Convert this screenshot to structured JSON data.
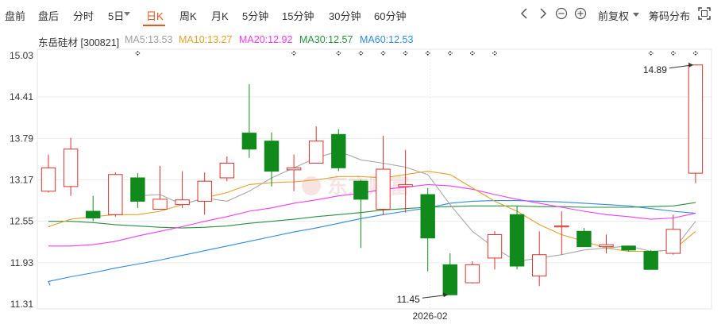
{
  "toolbar": {
    "tabs": [
      "盘前",
      "盘后",
      "分时",
      "5日",
      "日K",
      "周K",
      "月K",
      "5分钟",
      "15分钟",
      "30分钟",
      "60分钟"
    ],
    "active_tab": "日K",
    "adjust_label": "前复权",
    "chip_label": "筹码分布"
  },
  "legend": {
    "stock": "东岳硅材 [300821]",
    "ma5": "MA5:13.53",
    "ma10": "MA10:13.27",
    "ma20": "MA20:12.92",
    "ma30": "MA30:12.57",
    "ma60": "MA60:12.53"
  },
  "colors": {
    "up": "#d8332d",
    "down": "#118a1c",
    "ma5": "#a8a8a8",
    "ma10": "#e2a12b",
    "ma20": "#f43af4",
    "ma30": "#2a8f3f",
    "ma60": "#2f8ae0",
    "accent": "#e8541e"
  },
  "chart_data": {
    "type": "candlestick",
    "y_ticks": [
      "15.03",
      "14.41",
      "13.79",
      "13.17",
      "12.55",
      "11.93",
      "11.31"
    ],
    "ylim": [
      11.31,
      15.03
    ],
    "x_tick_label": "2026-02",
    "annotations": {
      "high": "14.89",
      "low": "11.45"
    },
    "candles": [
      {
        "open": 13.0,
        "close": 13.35,
        "high": 13.55,
        "low": 12.98
      },
      {
        "open": 13.07,
        "close": 13.63,
        "high": 13.8,
        "low": 12.93
      },
      {
        "open": 12.7,
        "close": 12.6,
        "high": 12.93,
        "low": 12.55
      },
      {
        "open": 12.65,
        "close": 13.25,
        "high": 13.28,
        "low": 12.62
      },
      {
        "open": 13.2,
        "close": 12.85,
        "high": 13.27,
        "low": 12.75
      },
      {
        "open": 12.73,
        "close": 12.88,
        "high": 13.38,
        "low": 12.73
      },
      {
        "open": 12.8,
        "close": 12.87,
        "high": 13.3,
        "low": 12.75
      },
      {
        "open": 12.85,
        "close": 13.15,
        "high": 13.28,
        "low": 12.65
      },
      {
        "open": 13.2,
        "close": 13.42,
        "high": 13.52,
        "low": 13.15
      },
      {
        "open": 13.87,
        "close": 13.63,
        "high": 14.6,
        "low": 13.5
      },
      {
        "open": 13.75,
        "close": 13.3,
        "high": 13.88,
        "low": 13.07
      },
      {
        "open": 13.32,
        "close": 13.35,
        "high": 13.55,
        "low": 13.0
      },
      {
        "open": 13.42,
        "close": 13.75,
        "high": 13.97,
        "low": 13.43
      },
      {
        "open": 13.85,
        "close": 13.35,
        "high": 13.93,
        "low": 13.3
      },
      {
        "open": 13.15,
        "close": 12.88,
        "high": 13.17,
        "low": 12.15
      },
      {
        "open": 12.73,
        "close": 13.33,
        "high": 13.83,
        "low": 12.65
      },
      {
        "open": 13.07,
        "close": 13.1,
        "high": 13.62,
        "low": 12.68
      },
      {
        "open": 12.95,
        "close": 12.3,
        "high": 13.05,
        "low": 11.8
      },
      {
        "open": 11.9,
        "close": 11.45,
        "high": 12.07,
        "low": 11.45
      },
      {
        "open": 11.63,
        "close": 11.9,
        "high": 11.95,
        "low": 11.62
      },
      {
        "open": 12.0,
        "close": 12.35,
        "high": 12.4,
        "low": 11.83
      },
      {
        "open": 12.65,
        "close": 11.88,
        "high": 12.78,
        "low": 11.83
      },
      {
        "open": 11.73,
        "close": 12.05,
        "high": 12.4,
        "low": 11.58
      },
      {
        "open": 12.47,
        "close": 12.48,
        "high": 12.7,
        "low": 12.05
      },
      {
        "open": 12.4,
        "close": 12.17,
        "high": 12.45,
        "low": 12.17
      },
      {
        "open": 12.17,
        "close": 12.2,
        "high": 12.35,
        "low": 12.07
      },
      {
        "open": 12.18,
        "close": 12.12,
        "high": 12.18,
        "low": 12.1
      },
      {
        "open": 12.1,
        "close": 11.83,
        "high": 12.12,
        "low": 11.83
      },
      {
        "open": 12.07,
        "close": 12.43,
        "high": 12.65,
        "low": 12.05
      },
      {
        "open": 13.27,
        "close": 14.89,
        "high": 14.89,
        "low": 13.12
      }
    ],
    "ma5": [
      null,
      null,
      null,
      null,
      12.93,
      12.95,
      12.8,
      12.9,
      12.85,
      13.0,
      13.2,
      13.35,
      13.5,
      13.6,
      13.47,
      13.42,
      13.36,
      13.25,
      12.8,
      12.4,
      12.15,
      11.95,
      12.0,
      12.05,
      12.12,
      12.15,
      12.18,
      12.1,
      12.12,
      12.55
    ],
    "ma10": [
      12.47,
      12.58,
      12.62,
      12.65,
      12.65,
      12.7,
      12.8,
      12.9,
      12.98,
      13.1,
      13.13,
      13.14,
      13.17,
      13.22,
      13.22,
      13.2,
      13.25,
      13.3,
      13.25,
      13.05,
      12.85,
      12.7,
      12.5,
      12.35,
      12.25,
      12.15,
      12.1,
      12.1,
      12.12,
      12.4
    ],
    "ma20": [
      12.18,
      12.18,
      12.2,
      12.25,
      12.33,
      12.4,
      12.47,
      12.55,
      12.62,
      12.7,
      12.75,
      12.82,
      12.87,
      12.93,
      12.97,
      13.03,
      13.06,
      13.1,
      13.08,
      13.03,
      12.95,
      12.88,
      12.82,
      12.76,
      12.7,
      12.65,
      12.62,
      12.58,
      12.6,
      12.67
    ],
    "ma30": [
      12.55,
      12.55,
      12.53,
      12.5,
      12.48,
      12.46,
      12.45,
      12.46,
      12.48,
      12.52,
      12.55,
      12.58,
      12.62,
      12.65,
      12.68,
      12.72,
      12.74,
      12.76,
      12.77,
      12.78,
      12.78,
      12.78,
      12.77,
      12.77,
      12.76,
      12.76,
      12.76,
      12.77,
      12.78,
      12.83
    ],
    "ma60": [
      11.65,
      11.72,
      11.78,
      11.85,
      11.91,
      11.97,
      12.04,
      12.11,
      12.18,
      12.25,
      12.32,
      12.39,
      12.45,
      12.52,
      12.59,
      12.65,
      12.7,
      12.75,
      12.82,
      12.85,
      12.86,
      12.86,
      12.85,
      12.84,
      12.82,
      12.8,
      12.78,
      12.74,
      12.7,
      12.67
    ],
    "marker_count": 13
  }
}
